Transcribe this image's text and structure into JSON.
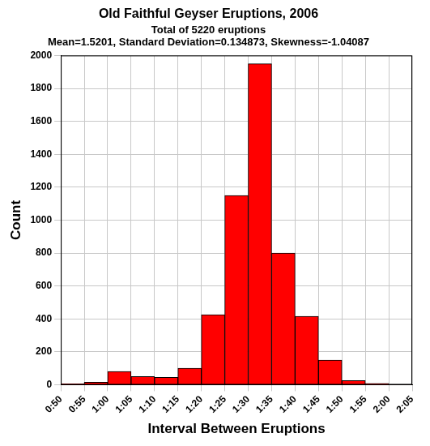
{
  "chart_data": {
    "type": "histogram",
    "title": "Old Faithful Geyser Eruptions, 2006",
    "subtitle": [
      "Total of 5220 eruptions",
      "Mean=1.5201, Standard Deviation=0.134873, Skewness=-1.04087"
    ],
    "x_label": "Interval Between Eruptions",
    "y_label": "Count",
    "bins": [
      50,
      55,
      60,
      65,
      70,
      75,
      80,
      85,
      90,
      95,
      100,
      105,
      110,
      115,
      120,
      125
    ],
    "values": [
      5,
      15,
      80,
      50,
      45,
      100,
      425,
      1150,
      1950,
      800,
      415,
      150,
      25,
      8,
      2
    ],
    "color": "#ff0000",
    "xlim": [
      50,
      125
    ],
    "xticks": [
      {
        "value": 50,
        "label": "0:50"
      },
      {
        "value": 55,
        "label": "0:55"
      },
      {
        "value": 60,
        "label": "1:00"
      },
      {
        "value": 65,
        "label": "1:05"
      },
      {
        "value": 70,
        "label": "1:10"
      },
      {
        "value": 75,
        "label": "1:15"
      },
      {
        "value": 80,
        "label": "1:20"
      },
      {
        "value": 85,
        "label": "1:25"
      },
      {
        "value": 90,
        "label": "1:30"
      },
      {
        "value": 95,
        "label": "1:35"
      },
      {
        "value": 100,
        "label": "1:40"
      },
      {
        "value": 105,
        "label": "1:45"
      },
      {
        "value": 110,
        "label": "1:50"
      },
      {
        "value": 115,
        "label": "1:55"
      },
      {
        "value": 120,
        "label": "2:00"
      },
      {
        "value": 125,
        "label": "2:05"
      }
    ],
    "ylim": [
      0,
      2000
    ],
    "yticks": [
      0,
      200,
      400,
      600,
      800,
      1000,
      1200,
      1400,
      1600,
      1800,
      2000
    ],
    "grid": true
  }
}
